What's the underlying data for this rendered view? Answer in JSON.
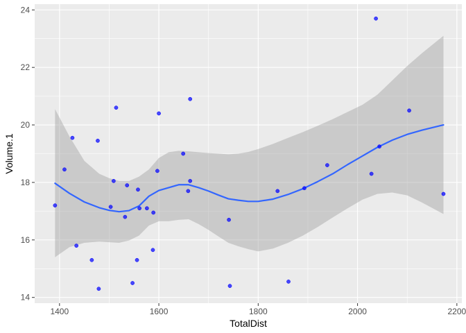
{
  "chart_data": {
    "type": "scatter",
    "title": "",
    "xlabel": "TotalDist",
    "ylabel": "Volume.1",
    "xlim": [
      1350,
      2210
    ],
    "ylim": [
      13.8,
      24.2
    ],
    "x_ticks": [
      1400,
      1600,
      1800,
      2000,
      2200
    ],
    "y_ticks": [
      14,
      16,
      18,
      20,
      22,
      24
    ],
    "x_tick_labels": [
      "1400",
      "1600",
      "1800",
      "2000",
      "2200"
    ],
    "y_tick_labels": [
      "14",
      "16",
      "18",
      "20",
      "22",
      "24"
    ],
    "grid": true,
    "legend": "none",
    "colors": {
      "panel_background": "#ebebeb",
      "grid": "#ffffff",
      "points": "#0000ff",
      "smooth_line": "#3366ff",
      "confidence_band": "#999999"
    },
    "points": [
      {
        "x": 1391,
        "y": 17.2
      },
      {
        "x": 1410,
        "y": 18.45
      },
      {
        "x": 1426,
        "y": 19.55
      },
      {
        "x": 1434,
        "y": 15.8
      },
      {
        "x": 1465,
        "y": 15.3
      },
      {
        "x": 1477,
        "y": 19.45
      },
      {
        "x": 1479,
        "y": 14.3
      },
      {
        "x": 1503,
        "y": 17.15
      },
      {
        "x": 1509,
        "y": 18.05
      },
      {
        "x": 1514,
        "y": 20.6
      },
      {
        "x": 1532,
        "y": 16.8
      },
      {
        "x": 1536,
        "y": 17.9
      },
      {
        "x": 1547,
        "y": 14.5
      },
      {
        "x": 1556,
        "y": 15.3
      },
      {
        "x": 1558,
        "y": 17.75
      },
      {
        "x": 1561,
        "y": 17.1
      },
      {
        "x": 1576,
        "y": 17.1
      },
      {
        "x": 1588,
        "y": 15.65
      },
      {
        "x": 1589,
        "y": 16.95
      },
      {
        "x": 1597,
        "y": 18.4
      },
      {
        "x": 1600,
        "y": 20.4
      },
      {
        "x": 1649,
        "y": 19.0
      },
      {
        "x": 1659,
        "y": 17.7
      },
      {
        "x": 1663,
        "y": 18.05
      },
      {
        "x": 1663,
        "y": 20.9
      },
      {
        "x": 1741,
        "y": 16.7
      },
      {
        "x": 1743,
        "y": 14.4
      },
      {
        "x": 1839,
        "y": 17.7
      },
      {
        "x": 1861,
        "y": 14.55
      },
      {
        "x": 1893,
        "y": 17.8
      },
      {
        "x": 1939,
        "y": 18.6
      },
      {
        "x": 2028,
        "y": 18.3
      },
      {
        "x": 2037,
        "y": 23.7
      },
      {
        "x": 2044,
        "y": 19.25
      },
      {
        "x": 2104,
        "y": 20.5
      },
      {
        "x": 2173,
        "y": 17.6
      }
    ],
    "smooth": {
      "x": [
        1391,
        1420,
        1450,
        1480,
        1500,
        1520,
        1540,
        1560,
        1580,
        1600,
        1620,
        1640,
        1660,
        1680,
        1700,
        1720,
        1740,
        1760,
        1780,
        1800,
        1830,
        1860,
        1890,
        1920,
        1950,
        1980,
        2010,
        2040,
        2070,
        2100,
        2130,
        2173
      ],
      "y": [
        17.97,
        17.62,
        17.32,
        17.12,
        17.03,
        16.98,
        17.02,
        17.18,
        17.52,
        17.72,
        17.82,
        17.92,
        17.92,
        17.82,
        17.7,
        17.56,
        17.43,
        17.38,
        17.34,
        17.34,
        17.42,
        17.58,
        17.78,
        18.03,
        18.3,
        18.62,
        18.92,
        19.22,
        19.47,
        19.67,
        19.82,
        20.0
      ],
      "upper": [
        20.55,
        19.6,
        18.75,
        18.3,
        18.15,
        18.05,
        18.05,
        18.2,
        18.45,
        18.85,
        19.05,
        19.1,
        19.08,
        19.05,
        19.02,
        19.0,
        18.98,
        19.0,
        19.06,
        19.16,
        19.34,
        19.55,
        19.75,
        19.97,
        20.2,
        20.45,
        20.7,
        21.05,
        21.55,
        22.05,
        22.5,
        23.1
      ],
      "lower": [
        15.4,
        15.75,
        15.9,
        15.94,
        15.92,
        15.9,
        15.98,
        16.15,
        16.5,
        16.65,
        16.65,
        16.7,
        16.72,
        16.55,
        16.35,
        16.12,
        15.9,
        15.78,
        15.68,
        15.6,
        15.7,
        15.9,
        16.15,
        16.45,
        16.78,
        17.1,
        17.4,
        17.6,
        17.65,
        17.55,
        17.3,
        16.9
      ]
    }
  }
}
